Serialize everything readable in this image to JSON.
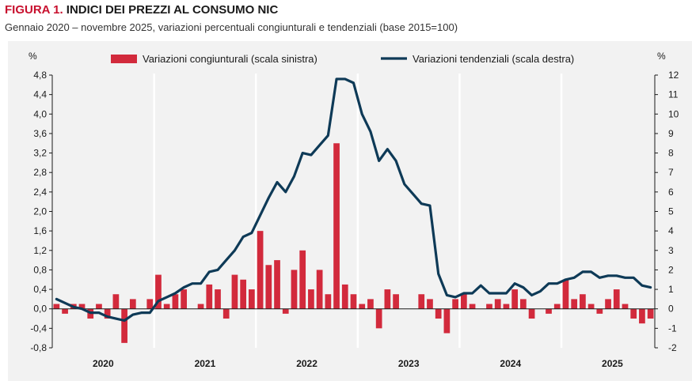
{
  "figure": {
    "number_label": "FIGURA 1.",
    "title": "INDICI DEI PREZZI AL CONSUMO NIC",
    "subtitle": "Gennaio 2020 – novembre 2025, variazioni percentuali congiunturali e tendenziali (base 2015=100)"
  },
  "chart_data": {
    "type": "bar",
    "combo": "bar + line (dual axis)",
    "left_axis": {
      "unit": "%",
      "ylim": [
        -0.8,
        4.8
      ],
      "ticks": [
        "-0,8",
        "-0,4",
        "0,0",
        "0,4",
        "0,8",
        "1,2",
        "1,6",
        "2,0",
        "2,4",
        "2,8",
        "3,2",
        "3,6",
        "4,0",
        "4,4",
        "4,8"
      ]
    },
    "right_axis": {
      "unit": "%",
      "ylim": [
        -2,
        12
      ],
      "ticks": [
        "-2",
        "-1",
        "0",
        "1",
        "2",
        "3",
        "4",
        "5",
        "6",
        "7",
        "8",
        "9",
        "10",
        "11",
        "12"
      ]
    },
    "x_axis": {
      "years": [
        "2020",
        "2021",
        "2022",
        "2023",
        "2024",
        "2025"
      ],
      "months_per_year": 12,
      "periods": 71
    },
    "legend": {
      "placement": "top",
      "bar_label": "Variazioni congiunturali (scala sinistra)",
      "line_label": "Variazioni tendenziali (scala destra)"
    },
    "colors": {
      "bar": "#d22a3c",
      "line": "#0e3a57",
      "background": "#f2f2f2"
    },
    "series": [
      {
        "name": "Variazioni congiunturali (scala sinistra)",
        "axis": "left",
        "values": [
          0.1,
          -0.1,
          0.1,
          0.1,
          -0.2,
          0.1,
          -0.2,
          0.3,
          -0.7,
          0.2,
          0.0,
          0.2,
          0.7,
          0.1,
          0.3,
          0.4,
          0.0,
          0.1,
          0.5,
          0.4,
          -0.2,
          0.7,
          0.6,
          0.4,
          1.6,
          0.9,
          1.0,
          -0.1,
          0.8,
          1.2,
          0.4,
          0.8,
          0.3,
          3.4,
          0.5,
          0.3,
          0.1,
          0.2,
          -0.4,
          0.4,
          0.3,
          0.0,
          0.0,
          0.3,
          0.2,
          -0.2,
          -0.5,
          0.2,
          0.3,
          0.1,
          0.0,
          0.1,
          0.2,
          0.1,
          0.4,
          0.2,
          -0.2,
          0.0,
          -0.1,
          0.1,
          0.6,
          0.2,
          0.3,
          0.1,
          -0.1,
          0.2,
          0.4,
          0.1,
          -0.2,
          -0.3,
          -0.2
        ]
      },
      {
        "name": "Variazioni tendenziali (scala destra)",
        "axis": "right",
        "values": [
          0.5,
          0.3,
          0.1,
          0.0,
          -0.2,
          -0.2,
          -0.4,
          -0.5,
          -0.6,
          -0.3,
          -0.2,
          -0.2,
          0.4,
          0.6,
          0.8,
          1.1,
          1.3,
          1.3,
          1.9,
          2.0,
          2.5,
          3.0,
          3.7,
          3.9,
          4.8,
          5.7,
          6.5,
          6.0,
          6.8,
          8.0,
          7.9,
          8.4,
          8.9,
          11.8,
          11.8,
          11.6,
          10.0,
          9.1,
          7.6,
          8.2,
          7.6,
          6.4,
          5.9,
          5.4,
          5.3,
          1.8,
          0.7,
          0.6,
          0.8,
          0.8,
          1.2,
          0.8,
          0.8,
          0.8,
          1.3,
          1.1,
          0.7,
          0.9,
          1.3,
          1.3,
          1.5,
          1.6,
          1.9,
          1.9,
          1.6,
          1.7,
          1.7,
          1.6,
          1.6,
          1.2,
          1.1
        ]
      }
    ]
  }
}
